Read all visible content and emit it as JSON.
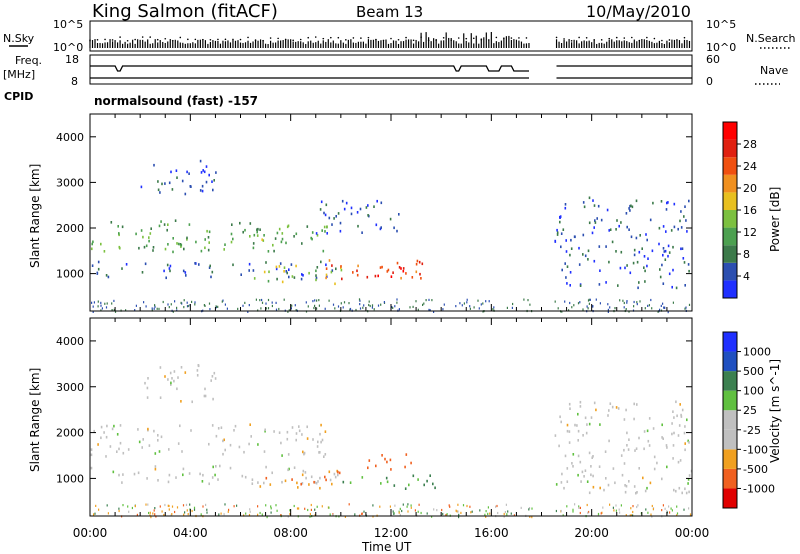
{
  "header": {
    "station": "King Salmon (fitACF)",
    "beam": "Beam 13",
    "date": "10/May/2010"
  },
  "top_panels": {
    "nsky_label": "N.Sky",
    "nsearch_label": "N.Search",
    "noise_ticks": [
      "10^5",
      "10^0"
    ],
    "freq_label_1": "Freq.",
    "freq_label_2": "[MHz]",
    "freq_ticks": [
      "18",
      "8"
    ],
    "nave_label": "Nave",
    "nave_ticks": [
      "60",
      "0"
    ],
    "cpid_label": "CPID",
    "cpid_text": "normalsound (fast) -157"
  },
  "colors": {
    "power": [
      "#2030ff",
      "#2c4fb0",
      "#3c7a4a",
      "#4ca050",
      "#7cc040",
      "#e8c020",
      "#f09020",
      "#f05010",
      "#e02010",
      "#ff0000"
    ],
    "velocity": [
      "#e00000",
      "#f06020",
      "#f0a020",
      "#c0c0c0",
      "#c0c0c0",
      "#60c040",
      "#3c8050",
      "#2050c0",
      "#2030ff"
    ]
  },
  "chart_data": [
    {
      "type": "heatmap",
      "title": "Power",
      "ylabel": "Slant Range [km]",
      "xlabel": "Time UT",
      "xlim": [
        "00:00",
        "24:00"
      ],
      "ylim": [
        180,
        4500
      ],
      "x_ticks": [
        "00:00",
        "04:00",
        "08:00",
        "12:00",
        "16:00",
        "20:00",
        "00:00"
      ],
      "y_ticks": [
        1000,
        2000,
        3000,
        4000
      ],
      "colorbar_label": "Power [dB]",
      "colorbar_ticks": [
        "4",
        "8",
        "12",
        "16",
        "20",
        "24",
        "28"
      ],
      "colorbar_range": [
        0,
        30
      ],
      "data_gap_hours": [
        17.6,
        18.5
      ],
      "echo_regions": [
        {
          "t0": 2.0,
          "t1": 5.0,
          "r0": 2700,
          "r1": 3500,
          "dB": 4
        },
        {
          "t0": 0.0,
          "t1": 9.5,
          "r0": 1500,
          "r1": 2200,
          "dB": 10
        },
        {
          "t0": 3.0,
          "t1": 8.5,
          "r0": 1650,
          "r1": 1800,
          "dB": 14
        },
        {
          "t0": 0.0,
          "t1": 10.0,
          "r0": 900,
          "r1": 1300,
          "dB": 5
        },
        {
          "t0": 6.5,
          "t1": 10.0,
          "r0": 800,
          "r1": 1200,
          "dB": 14
        },
        {
          "t0": 9.0,
          "t1": 13.5,
          "r0": 900,
          "r1": 1350,
          "dB": 22
        },
        {
          "t0": 11.0,
          "t1": 13.0,
          "r0": 950,
          "r1": 1200,
          "dB": 27
        },
        {
          "t0": 9.0,
          "t1": 12.5,
          "r0": 1900,
          "r1": 2700,
          "dB": 5
        },
        {
          "t0": 18.5,
          "t1": 24.0,
          "r0": 700,
          "r1": 2700,
          "dB": 5
        }
      ]
    },
    {
      "type": "heatmap",
      "title": "Velocity",
      "ylabel": "Slant Range [km]",
      "xlabel": "Time UT",
      "xlim": [
        "00:00",
        "24:00"
      ],
      "ylim": [
        180,
        4500
      ],
      "x_ticks": [
        "00:00",
        "04:00",
        "08:00",
        "12:00",
        "16:00",
        "20:00",
        "00:00"
      ],
      "y_ticks": [
        1000,
        2000,
        3000,
        4000
      ],
      "colorbar_label": "Velocity [m s^-1]",
      "colorbar_ticks": [
        "1000",
        "500",
        "100",
        "25",
        "-25",
        "-100",
        "-500",
        "-1000"
      ],
      "data_gap_hours": [
        17.6,
        18.5
      ],
      "echo_regions": [
        {
          "t0": 2.0,
          "t1": 5.0,
          "r0": 2700,
          "r1": 3500,
          "v": 0
        },
        {
          "t0": 0.0,
          "t1": 9.5,
          "r0": 1500,
          "r1": 2200,
          "v": 0
        },
        {
          "t0": 0.0,
          "t1": 10.0,
          "r0": 900,
          "r1": 1300,
          "v": 0
        },
        {
          "t0": 6.5,
          "t1": 10.0,
          "r0": 800,
          "r1": 1200,
          "v": -100
        },
        {
          "t0": 10.0,
          "t1": 14.0,
          "r0": 800,
          "r1": 1100,
          "v": 100
        },
        {
          "t0": 11.0,
          "t1": 13.0,
          "r0": 1150,
          "r1": 1550,
          "v": -300
        },
        {
          "t0": 18.5,
          "t1": 24.0,
          "r0": 700,
          "r1": 2700,
          "v": 0
        }
      ]
    }
  ]
}
